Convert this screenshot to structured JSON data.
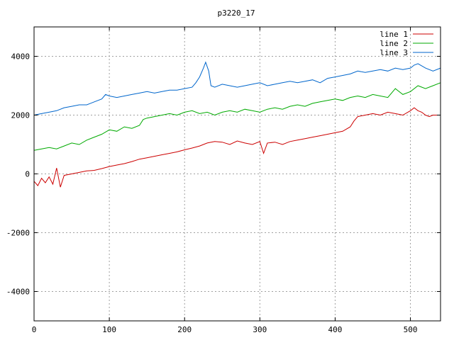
{
  "chart_data": {
    "type": "line",
    "title": "p3220_17",
    "xlim": [
      0,
      540
    ],
    "ylim": [
      -5000,
      5000
    ],
    "x_ticks": [
      0,
      100,
      200,
      300,
      400,
      500
    ],
    "y_ticks": [
      -4000,
      -2000,
      0,
      2000,
      4000
    ],
    "grid": true,
    "legend_position": "top-right",
    "series": [
      {
        "name": "line 1",
        "color": "#cc0000",
        "x": [
          0,
          5,
          10,
          15,
          20,
          25,
          30,
          35,
          40,
          50,
          60,
          70,
          80,
          90,
          100,
          110,
          120,
          130,
          140,
          150,
          160,
          170,
          180,
          190,
          200,
          210,
          220,
          230,
          240,
          250,
          260,
          270,
          280,
          290,
          300,
          305,
          310,
          320,
          330,
          340,
          350,
          360,
          370,
          380,
          390,
          400,
          410,
          420,
          425,
          430,
          440,
          450,
          460,
          470,
          480,
          490,
          500,
          505,
          510,
          515,
          520,
          525,
          530,
          540
        ],
        "y": [
          -250,
          -400,
          -150,
          -300,
          -100,
          -350,
          200,
          -450,
          -50,
          0,
          50,
          100,
          120,
          180,
          250,
          300,
          350,
          420,
          500,
          550,
          600,
          650,
          700,
          750,
          820,
          880,
          950,
          1050,
          1100,
          1080,
          1000,
          1120,
          1050,
          1000,
          1100,
          700,
          1050,
          1080,
          1000,
          1100,
          1150,
          1200,
          1250,
          1300,
          1350,
          1400,
          1450,
          1600,
          1800,
          1950,
          2000,
          2050,
          2000,
          2100,
          2050,
          2000,
          2150,
          2250,
          2150,
          2100,
          2000,
          1950,
          2000,
          2000
        ]
      },
      {
        "name": "line 2",
        "color": "#00aa00",
        "x": [
          0,
          10,
          20,
          30,
          40,
          50,
          60,
          70,
          80,
          90,
          100,
          110,
          120,
          130,
          140,
          145,
          150,
          160,
          170,
          180,
          190,
          200,
          210,
          220,
          230,
          240,
          250,
          260,
          270,
          280,
          290,
          300,
          310,
          320,
          330,
          340,
          350,
          360,
          370,
          380,
          390,
          400,
          410,
          420,
          430,
          440,
          450,
          460,
          470,
          480,
          490,
          500,
          510,
          520,
          530,
          540
        ],
        "y": [
          800,
          850,
          900,
          850,
          950,
          1050,
          1000,
          1150,
          1250,
          1350,
          1500,
          1450,
          1600,
          1550,
          1650,
          1850,
          1900,
          1950,
          2000,
          2050,
          2000,
          2100,
          2150,
          2050,
          2100,
          2000,
          2100,
          2150,
          2100,
          2200,
          2150,
          2100,
          2200,
          2250,
          2200,
          2300,
          2350,
          2300,
          2400,
          2450,
          2500,
          2550,
          2500,
          2600,
          2650,
          2600,
          2700,
          2650,
          2600,
          2900,
          2700,
          2800,
          3000,
          2900,
          3000,
          3100
        ]
      },
      {
        "name": "line 3",
        "color": "#0066cc",
        "x": [
          0,
          10,
          20,
          30,
          40,
          50,
          60,
          70,
          80,
          90,
          95,
          100,
          110,
          120,
          130,
          140,
          150,
          160,
          170,
          180,
          190,
          200,
          210,
          215,
          220,
          225,
          228,
          232,
          235,
          240,
          250,
          260,
          270,
          280,
          290,
          300,
          310,
          320,
          330,
          340,
          350,
          360,
          370,
          380,
          390,
          400,
          410,
          420,
          430,
          440,
          450,
          460,
          470,
          480,
          490,
          500,
          505,
          510,
          520,
          530,
          540
        ],
        "y": [
          2000,
          2050,
          2100,
          2150,
          2250,
          2300,
          2350,
          2350,
          2450,
          2550,
          2700,
          2650,
          2600,
          2650,
          2700,
          2750,
          2800,
          2750,
          2800,
          2850,
          2850,
          2900,
          2950,
          3100,
          3300,
          3600,
          3800,
          3500,
          3000,
          2950,
          3050,
          3000,
          2950,
          3000,
          3050,
          3100,
          3000,
          3050,
          3100,
          3150,
          3100,
          3150,
          3200,
          3100,
          3250,
          3300,
          3350,
          3400,
          3500,
          3450,
          3500,
          3550,
          3500,
          3600,
          3550,
          3600,
          3700,
          3750,
          3600,
          3500,
          3600
        ]
      }
    ]
  }
}
